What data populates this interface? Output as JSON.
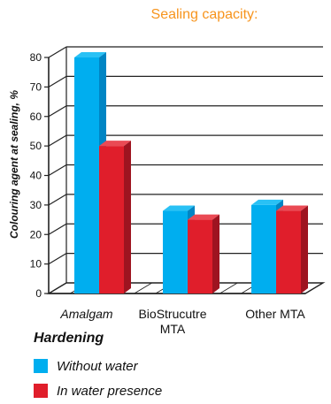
{
  "chart_data": {
    "type": "bar",
    "title": "Sealing capacity:",
    "xlabel": "Hardening",
    "ylabel": "Colouring agent at sealing, %",
    "categories": [
      "Amalgam",
      "BioStrucutre\nMTA",
      "Other MTA"
    ],
    "ylim": [
      0,
      80
    ],
    "yticks": [
      0,
      10,
      20,
      30,
      40,
      50,
      60,
      70,
      80
    ],
    "grid": true,
    "legend_position": "bottom-left",
    "series": [
      {
        "name": "Without water",
        "color": "#00aeef",
        "values": [
          80,
          28,
          30
        ]
      },
      {
        "name": "In water presence",
        "color": "#e01e2b",
        "values": [
          50,
          25,
          28
        ]
      }
    ]
  }
}
